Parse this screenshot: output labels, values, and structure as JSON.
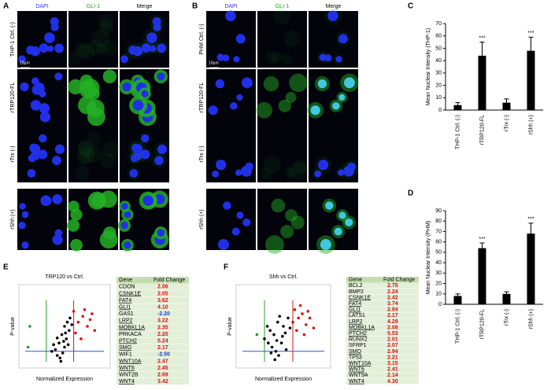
{
  "images": [
    {
      "panel": "A",
      "columns": [
        "DAPI",
        "GLI-1",
        "Merge"
      ],
      "rows": [
        "THP-1 Ctrl. (-)",
        "rTRP120-FL",
        "rTrx (-)",
        "rShh (+)"
      ],
      "scale": "10µm"
    },
    {
      "panel": "B",
      "columns": [
        "DAPI",
        "GLI-1",
        "Merge"
      ],
      "rows": [
        "PHM Ctrl. (-)",
        "rTRP120-FL",
        "rTrx (-)",
        "rShh (+)"
      ],
      "scale": "10µm"
    }
  ],
  "chart_data": [
    {
      "type": "bar",
      "panel": "C",
      "ylabel": "Mean Nuclear Intensity (THP-1)",
      "categories": [
        "THP-1 Ctrl. (-)",
        "rTRP120-FL",
        "rTrx (-)",
        "rShh (+)"
      ],
      "values": [
        4,
        44,
        6,
        48
      ],
      "errors": [
        2,
        11,
        3,
        11
      ],
      "significance": [
        null,
        "***",
        null,
        "***"
      ],
      "color": "#000000",
      "ylim": [
        0,
        70
      ],
      "yticks": [
        0,
        10,
        20,
        30,
        40,
        50,
        60,
        70
      ]
    },
    {
      "type": "bar",
      "panel": "D",
      "ylabel": "Mean Nuclear Intensity (PHM)",
      "categories": [
        "THP-1 Ctrl. (-)",
        "rTRP120-FL",
        "rTrx (-)",
        "rShh (+)"
      ],
      "values": [
        8,
        54,
        10,
        68
      ],
      "errors": [
        2,
        5,
        2,
        10
      ],
      "significance": [
        null,
        "***",
        null,
        "***"
      ],
      "color": "#000000",
      "ylim": [
        0,
        90
      ],
      "yticks": [
        0,
        10,
        20,
        30,
        40,
        50,
        60,
        70,
        80,
        90
      ]
    },
    {
      "type": "scatter",
      "panel": "E",
      "title": "TRP120 vs Ctrl.",
      "xlabel": "Normalized Expression",
      "ylabel": "P-value",
      "xlim": [
        0,
        1
      ],
      "ylim": [
        0,
        1
      ],
      "series": [
        {
          "color": "#000000",
          "x": [
            0.42,
            0.45,
            0.48,
            0.4,
            0.5,
            0.44,
            0.52,
            0.47,
            0.55,
            0.5,
            0.53,
            0.38,
            0.36,
            0.46,
            0.56,
            0.58,
            0.42,
            0.49,
            0.54,
            0.51
          ],
          "values": [
            0.15,
            0.12,
            0.18,
            0.22,
            0.25,
            0.3,
            0.35,
            0.4,
            0.45,
            0.5,
            0.55,
            0.28,
            0.2,
            0.08,
            0.6,
            0.52,
            0.36,
            0.32,
            0.28,
            0.42
          ]
        },
        {
          "color": "#e01010",
          "x": [
            0.6,
            0.65,
            0.7,
            0.75,
            0.78,
            0.83,
            0.62,
            0.72,
            0.68,
            0.8
          ],
          "values": [
            0.68,
            0.55,
            0.62,
            0.5,
            0.58,
            0.45,
            0.42,
            0.7,
            0.35,
            0.65
          ]
        },
        {
          "color": "#20a020",
          "x": [
            0.12,
            0.1
          ],
          "values": [
            0.5,
            0.25
          ]
        }
      ]
    },
    {
      "type": "scatter",
      "panel": "F",
      "title": "Shh vs Ctrl.",
      "xlabel": "Normalized Expression",
      "ylabel": "P-value",
      "xlim": [
        0,
        1
      ],
      "ylim": [
        0,
        1
      ],
      "series": [
        {
          "color": "#000000",
          "x": [
            0.3,
            0.34,
            0.38,
            0.42,
            0.45,
            0.4,
            0.36,
            0.48,
            0.5,
            0.44,
            0.52,
            0.55,
            0.33,
            0.46,
            0.41,
            0.53,
            0.57,
            0.49,
            0.37,
            0.43
          ],
          "values": [
            0.35,
            0.3,
            0.25,
            0.2,
            0.15,
            0.4,
            0.45,
            0.3,
            0.5,
            0.55,
            0.42,
            0.6,
            0.5,
            0.62,
            0.1,
            0.22,
            0.48,
            0.38,
            0.18,
            0.33
          ]
        },
        {
          "color": "#e01010",
          "x": [
            0.62,
            0.66,
            0.7,
            0.74,
            0.78,
            0.82,
            0.64,
            0.72,
            0.68,
            0.76,
            0.6
          ],
          "values": [
            0.7,
            0.6,
            0.65,
            0.52,
            0.6,
            0.48,
            0.45,
            0.4,
            0.75,
            0.68,
            0.55
          ]
        },
        {
          "color": "#20a020",
          "x": [
            0.22
          ],
          "values": [
            0.4
          ]
        }
      ]
    }
  ],
  "tables": [
    {
      "header": [
        "Gene",
        "Fold Change"
      ],
      "rows": [
        {
          "gene": "CDON",
          "fold": "2.06",
          "underlined": false
        },
        {
          "gene": "CSNK1E",
          "fold": "2.05",
          "underlined": true
        },
        {
          "gene": "FAT4",
          "fold": "3.62",
          "underlined": true
        },
        {
          "gene": "GLI1",
          "fold": "4.10",
          "underlined": true
        },
        {
          "gene": "GAS1",
          "fold": "-2.20",
          "underlined": false
        },
        {
          "gene": "LRP2",
          "fold": "3.22",
          "underlined": true
        },
        {
          "gene": "MOBKL1A",
          "fold": "2.35",
          "underlined": true
        },
        {
          "gene": "PRKACA",
          "fold": "2.20",
          "underlined": false
        },
        {
          "gene": "PTCH2",
          "fold": "5.24",
          "underlined": true
        },
        {
          "gene": "SMO",
          "fold": "2.17",
          "underlined": true
        },
        {
          "gene": "WIF1",
          "fold": "-2.50",
          "underlined": false
        },
        {
          "gene": "WNT10A",
          "fold": "2.47",
          "underlined": true
        },
        {
          "gene": "WNT6",
          "fold": "2.45",
          "underlined": true
        },
        {
          "gene": "WNT2B",
          "fold": "2.69",
          "underlined": false
        },
        {
          "gene": "WNT4",
          "fold": "3.42",
          "underlined": true
        }
      ]
    },
    {
      "header": [
        "Gene",
        "Fold Change"
      ],
      "rows": [
        {
          "gene": "BCL2",
          "fold": "2.75",
          "underlined": false
        },
        {
          "gene": "BMP2",
          "fold": "2.24",
          "underlined": false
        },
        {
          "gene": "CSNK1E",
          "fold": "2.42",
          "underlined": true
        },
        {
          "gene": "FAT4",
          "fold": "3.74",
          "underlined": true
        },
        {
          "gene": "GLI1",
          "fold": "2.84",
          "underlined": true
        },
        {
          "gene": "LATS1",
          "fold": "2.17",
          "underlined": false
        },
        {
          "gene": "LRP2",
          "fold": "4.29",
          "underlined": true
        },
        {
          "gene": "MOBKL1A",
          "fold": "2.08",
          "underlined": true
        },
        {
          "gene": "PTCH2",
          "fold": "5.53",
          "underlined": true
        },
        {
          "gene": "RUNX2",
          "fold": "2.01",
          "underlined": false
        },
        {
          "gene": "SFRP1",
          "fold": "2.07",
          "underlined": false
        },
        {
          "gene": "SMO",
          "fold": "2.94",
          "underlined": true
        },
        {
          "gene": "TP53",
          "fold": "2.21",
          "underlined": false
        },
        {
          "gene": "WNT10A",
          "fold": "3.15",
          "underlined": true
        },
        {
          "gene": "WNT6",
          "fold": "2.41",
          "underlined": true
        },
        {
          "gene": "WNT9A",
          "fold": "2.14",
          "underlined": false
        },
        {
          "gene": "WNT4",
          "fold": "4.30",
          "underlined": true
        }
      ]
    }
  ]
}
